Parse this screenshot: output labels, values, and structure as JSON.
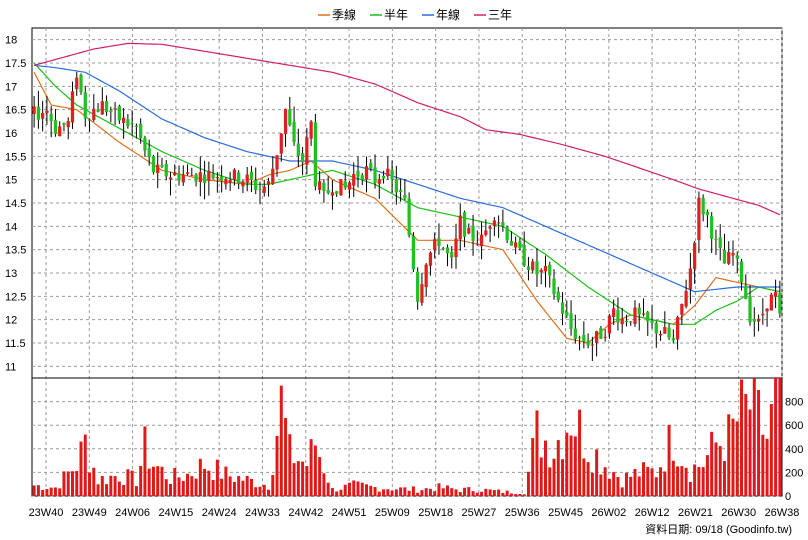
{
  "legend": {
    "items": [
      {
        "label": "季線",
        "color": "#e0701c"
      },
      {
        "label": "半年",
        "color": "#18c018"
      },
      {
        "label": "年線",
        "color": "#2a6ed8"
      },
      {
        "label": "三年",
        "color": "#d0206a"
      }
    ]
  },
  "footer": {
    "caption": "資料日期: 09/18 (Goodinfo.tw)"
  },
  "colors": {
    "up": "#e02020",
    "down": "#20c020",
    "volume": "#e01818",
    "grid": "#9a9a9a"
  },
  "chart_data": {
    "type": "candlestick",
    "price_axis": {
      "min": 10.75,
      "max": 18.25,
      "ticks": [
        "11",
        "11.5",
        "12",
        "12.5",
        "13",
        "13.5",
        "14",
        "14.5",
        "15",
        "15.5",
        "16",
        "16.5",
        "17",
        "17.5",
        "18"
      ]
    },
    "volume_axis": {
      "min": 0,
      "max": 1000,
      "ticks": [
        "0",
        "200",
        "400",
        "600",
        "800"
      ]
    },
    "x_ticks": [
      "23W40",
      "23W49",
      "24W06",
      "24W15",
      "24W24",
      "24W33",
      "24W42",
      "24W51",
      "25W09",
      "25W18",
      "25W27",
      "25W36",
      "25W45",
      "26W02",
      "26W12",
      "26W21",
      "26W30",
      "26W38"
    ],
    "ma_anchors": {
      "quarter": [
        [
          0,
          17.3
        ],
        [
          4,
          16.6
        ],
        [
          10,
          16.5
        ],
        [
          20,
          15.8
        ],
        [
          30,
          15.2
        ],
        [
          40,
          15.0
        ],
        [
          50,
          14.9
        ],
        [
          55,
          15.1
        ],
        [
          60,
          15.2
        ],
        [
          65,
          15.4
        ],
        [
          70,
          15.0
        ],
        [
          80,
          14.6
        ],
        [
          90,
          13.7
        ],
        [
          100,
          13.7
        ],
        [
          110,
          13.5
        ],
        [
          118,
          12.4
        ],
        [
          125,
          11.6
        ],
        [
          130,
          11.5
        ],
        [
          135,
          11.9
        ],
        [
          140,
          12.1
        ],
        [
          145,
          12.0
        ],
        [
          150,
          11.9
        ],
        [
          155,
          12.3
        ],
        [
          160,
          12.9
        ],
        [
          165,
          12.8
        ],
        [
          170,
          12.7
        ],
        [
          175,
          12.6
        ]
      ],
      "half": [
        [
          0,
          17.5
        ],
        [
          5,
          17.0
        ],
        [
          10,
          16.6
        ],
        [
          20,
          16.1
        ],
        [
          30,
          15.6
        ],
        [
          40,
          15.2
        ],
        [
          50,
          14.9
        ],
        [
          55,
          14.9
        ],
        [
          60,
          15.0
        ],
        [
          70,
          15.2
        ],
        [
          80,
          14.9
        ],
        [
          90,
          14.4
        ],
        [
          100,
          14.2
        ],
        [
          110,
          14.0
        ],
        [
          120,
          13.4
        ],
        [
          130,
          12.7
        ],
        [
          140,
          12.1
        ],
        [
          150,
          11.9
        ],
        [
          155,
          11.9
        ],
        [
          160,
          12.2
        ],
        [
          165,
          12.4
        ],
        [
          170,
          12.7
        ],
        [
          175,
          12.6
        ]
      ],
      "year": [
        [
          0,
          17.45
        ],
        [
          5,
          17.4
        ],
        [
          12,
          17.3
        ],
        [
          20,
          16.9
        ],
        [
          30,
          16.3
        ],
        [
          40,
          15.9
        ],
        [
          50,
          15.6
        ],
        [
          60,
          15.4
        ],
        [
          70,
          15.4
        ],
        [
          80,
          15.2
        ],
        [
          90,
          14.9
        ],
        [
          100,
          14.6
        ],
        [
          110,
          14.4
        ],
        [
          120,
          14.0
        ],
        [
          130,
          13.6
        ],
        [
          140,
          13.2
        ],
        [
          150,
          12.8
        ],
        [
          155,
          12.6
        ],
        [
          160,
          12.65
        ],
        [
          165,
          12.7
        ],
        [
          170,
          12.7
        ],
        [
          175,
          12.7
        ]
      ],
      "three_year": [
        [
          0,
          17.45
        ],
        [
          6,
          17.6
        ],
        [
          14,
          17.8
        ],
        [
          22,
          17.92
        ],
        [
          30,
          17.9
        ],
        [
          40,
          17.75
        ],
        [
          50,
          17.6
        ],
        [
          60,
          17.45
        ],
        [
          70,
          17.3
        ],
        [
          80,
          17.05
        ],
        [
          90,
          16.65
        ],
        [
          100,
          16.35
        ],
        [
          106,
          16.07
        ],
        [
          114,
          15.97
        ],
        [
          124,
          15.75
        ],
        [
          134,
          15.5
        ],
        [
          142,
          15.25
        ],
        [
          150,
          15.0
        ],
        [
          156,
          14.8
        ],
        [
          162,
          14.65
        ],
        [
          170,
          14.45
        ],
        [
          175,
          14.25
        ]
      ]
    },
    "price_anchors": [
      [
        0,
        16.4
      ],
      [
        3,
        16.5
      ],
      [
        5,
        16.1
      ],
      [
        8,
        16.2
      ],
      [
        10,
        17.3
      ],
      [
        12,
        16.4
      ],
      [
        16,
        16.6
      ],
      [
        20,
        16.3
      ],
      [
        24,
        16.1
      ],
      [
        26,
        15.6
      ],
      [
        28,
        15.2
      ],
      [
        32,
        15.1
      ],
      [
        40,
        15.1
      ],
      [
        45,
        15.1
      ],
      [
        50,
        15.0
      ],
      [
        53,
        14.8
      ],
      [
        55,
        14.9
      ],
      [
        57,
        15.6
      ],
      [
        59,
        16.5
      ],
      [
        61,
        15.7
      ],
      [
        63,
        15.4
      ],
      [
        65,
        16.2
      ],
      [
        66,
        15.0
      ],
      [
        68,
        14.6
      ],
      [
        70,
        14.9
      ],
      [
        73,
        14.8
      ],
      [
        75,
        15.1
      ],
      [
        78,
        15.2
      ],
      [
        80,
        15.0
      ],
      [
        82,
        15.2
      ],
      [
        85,
        14.8
      ],
      [
        87,
        14.5
      ],
      [
        90,
        12.5
      ],
      [
        92,
        13.3
      ],
      [
        95,
        13.7
      ],
      [
        98,
        13.2
      ],
      [
        100,
        14.1
      ],
      [
        102,
        13.8
      ],
      [
        105,
        13.7
      ],
      [
        108,
        14.3
      ],
      [
        110,
        14.0
      ],
      [
        113,
        13.5
      ],
      [
        116,
        13.2
      ],
      [
        118,
        13.0
      ],
      [
        120,
        13.0
      ],
      [
        123,
        12.4
      ],
      [
        126,
        11.8
      ],
      [
        128,
        11.6
      ],
      [
        131,
        11.5
      ],
      [
        134,
        11.8
      ],
      [
        136,
        12.2
      ],
      [
        138,
        12.0
      ],
      [
        141,
        12.1
      ],
      [
        144,
        11.9
      ],
      [
        146,
        11.8
      ],
      [
        148,
        11.7
      ],
      [
        150,
        11.5
      ],
      [
        152,
        12.3
      ],
      [
        154,
        13.1
      ],
      [
        156,
        14.5
      ],
      [
        158,
        14.2
      ],
      [
        160,
        13.6
      ],
      [
        162,
        13.2
      ],
      [
        164,
        13.4
      ],
      [
        166,
        12.9
      ],
      [
        168,
        12.1
      ],
      [
        170,
        11.9
      ],
      [
        172,
        12.4
      ],
      [
        174,
        12.5
      ],
      [
        175,
        12.0
      ]
    ],
    "volume_anchors": [
      [
        0,
        100
      ],
      [
        5,
        80
      ],
      [
        10,
        300
      ],
      [
        12,
        500
      ],
      [
        15,
        150
      ],
      [
        20,
        200
      ],
      [
        24,
        150
      ],
      [
        26,
        450
      ],
      [
        28,
        300
      ],
      [
        32,
        170
      ],
      [
        36,
        200
      ],
      [
        40,
        300
      ],
      [
        45,
        200
      ],
      [
        50,
        150
      ],
      [
        55,
        100
      ],
      [
        58,
        880
      ],
      [
        60,
        400
      ],
      [
        64,
        300
      ],
      [
        66,
        500
      ],
      [
        70,
        60
      ],
      [
        75,
        100
      ],
      [
        80,
        80
      ],
      [
        85,
        70
      ],
      [
        90,
        60
      ],
      [
        95,
        80
      ],
      [
        100,
        60
      ],
      [
        105,
        60
      ],
      [
        110,
        40
      ],
      [
        115,
        30
      ],
      [
        118,
        600
      ],
      [
        122,
        450
      ],
      [
        126,
        780
      ],
      [
        130,
        480
      ],
      [
        134,
        300
      ],
      [
        138,
        160
      ],
      [
        142,
        220
      ],
      [
        146,
        230
      ],
      [
        150,
        570
      ],
      [
        154,
        250
      ],
      [
        157,
        310
      ],
      [
        160,
        490
      ],
      [
        163,
        550
      ],
      [
        166,
        780
      ],
      [
        168,
        850
      ],
      [
        170,
        720
      ],
      [
        172,
        540
      ],
      [
        174,
        900
      ],
      [
        175,
        980
      ]
    ],
    "weeks": 176
  }
}
